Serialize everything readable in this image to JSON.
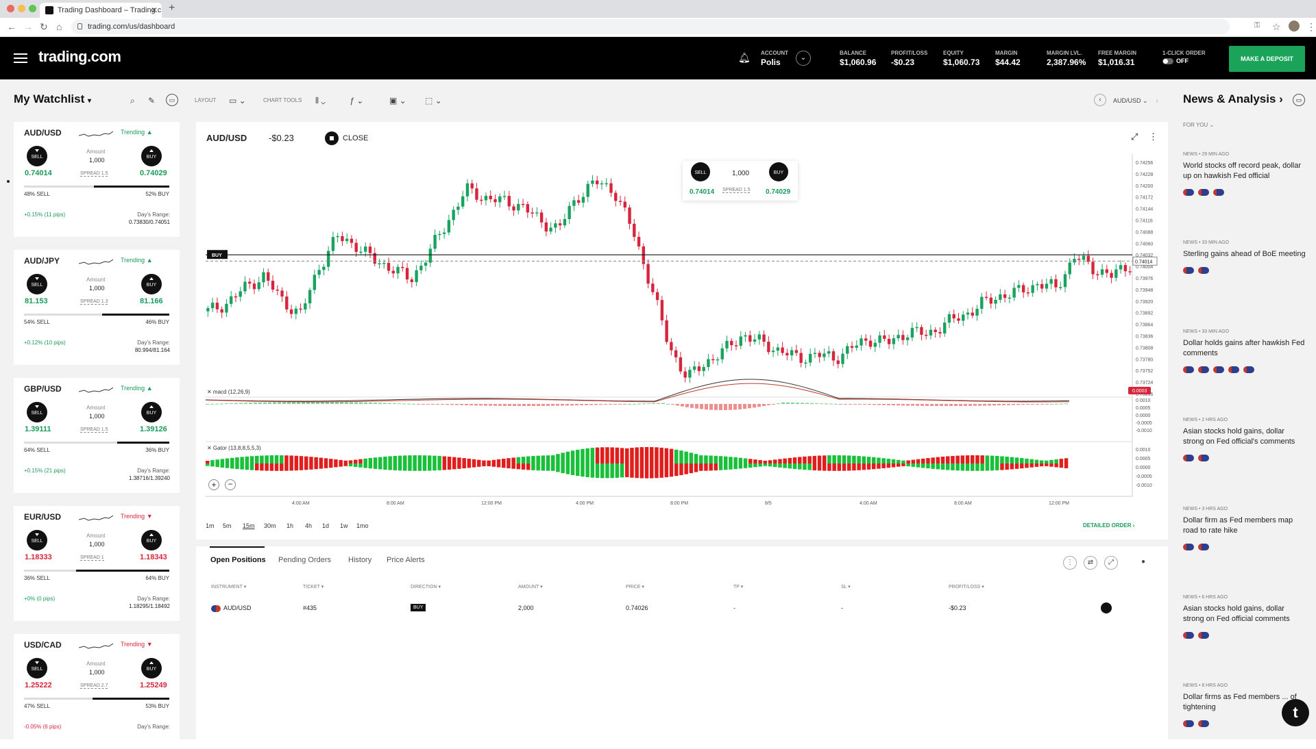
{
  "browser": {
    "tab_title": "Trading Dashboard – Trading.c",
    "url": "trading.com/us/dashboard"
  },
  "header": {
    "logo": "trading.com",
    "account_label": "ACCOUNT",
    "account_value": "Polis",
    "balance_label": "BALANCE",
    "balance_value": "$1,060.96",
    "pl_label": "PROFIT/LOSS",
    "pl_value": "-$0.23",
    "equity_label": "EQUITY",
    "equity_value": "$1,060.73",
    "margin_label": "MARGIN",
    "margin_value": "$44.42",
    "marginlvl_label": "MARGIN LVL.",
    "marginlvl_value": "2,387.96%",
    "freemargin_label": "FREE MARGIN",
    "freemargin_value": "$1,016.31",
    "oneclick_label": "1-CLICK ORDER",
    "oneclick_value": "OFF",
    "deposit_label": "MAKE A DEPOSIT"
  },
  "toolbar": {
    "watchlist_title": "My Watchlist",
    "layout_label": "LAYOUT",
    "charttools_label": "CHART TOOLS",
    "pair_selector": "AUD/USD"
  },
  "watchlist": [
    {
      "symbol": "AUD/USD",
      "trend": "Trending ▲",
      "trend_dir": "up",
      "sell": "0.74014",
      "buy": "0.74029",
      "amount_label": "Amount",
      "amount": "1,000",
      "spread": "SPREAD 1.5",
      "sell_pct": "48% SELL",
      "buy_pct": "52% BUY",
      "buy_frac": 0.52,
      "change": "+0.15% (11 pips)",
      "range_label": "Day's Range:",
      "range": "0.73830/0.74051"
    },
    {
      "symbol": "AUD/JPY",
      "trend": "Trending ▲",
      "trend_dir": "up",
      "sell": "81.153",
      "buy": "81.166",
      "amount_label": "Amount",
      "amount": "1,000",
      "spread": "SPREAD 1.3",
      "sell_pct": "54% SELL",
      "buy_pct": "46% BUY",
      "buy_frac": 0.46,
      "change": "+0.12% (10 pips)",
      "range_label": "Day's Range:",
      "range": "80.994/81.164"
    },
    {
      "symbol": "GBP/USD",
      "trend": "Trending ▲",
      "trend_dir": "up",
      "sell": "1.39111",
      "buy": "1.39126",
      "amount_label": "Amount",
      "amount": "1,000",
      "spread": "SPREAD 1.5",
      "sell_pct": "64% SELL",
      "buy_pct": "36% BUY",
      "buy_frac": 0.36,
      "change": "+0.15% (21 pips)",
      "range_label": "Day's Range:",
      "range": "1.38716/1.39240"
    },
    {
      "symbol": "EUR/USD",
      "trend": "Trending ▼",
      "trend_dir": "down",
      "sell": "1.18333",
      "buy": "1.18343",
      "amount_label": "Amount",
      "amount": "1,000",
      "spread": "SPREAD 1",
      "sell_pct": "36% SELL",
      "buy_pct": "64% BUY",
      "buy_frac": 0.64,
      "change": "+0% (0 pips)",
      "range_label": "Day's Range:",
      "range": "1.18295/1.18492"
    },
    {
      "symbol": "USD/CAD",
      "trend": "Trending ▼",
      "trend_dir": "down",
      "sell": "1.25222",
      "buy": "1.25249",
      "amount_label": "Amount",
      "amount": "1,000",
      "spread": "SPREAD 2.7",
      "sell_pct": "47% SELL",
      "buy_pct": "53% BUY",
      "buy_frac": 0.53,
      "change": "-0.05% (6 pips)",
      "range_label": "Day's Range:",
      "range": ""
    }
  ],
  "chart": {
    "symbol": "AUD/USD",
    "pl": "-$0.23",
    "close_label": "CLOSE",
    "ticket_sell": "SELL",
    "ticket_buy": "BUY",
    "ticket_amount": "1,000",
    "ticket_spread": "SPREAD 1.5",
    "ticket_sell_price": "0.74014",
    "ticket_buy_price": "0.74029",
    "buy_marker": "BUY",
    "price_tag": "0.74014",
    "macd_label": "macd (12,26,9)",
    "macd_tag": "0.0003",
    "gator_label": "Gator (13,8,8,5,5,3)",
    "timeframes": [
      "1m",
      "5m",
      "15m",
      "30m",
      "1h",
      "4h",
      "1d",
      "1w",
      "1mo"
    ],
    "detailed_order": "DETAILED ORDER ›"
  },
  "chart_data": {
    "type": "candlestick",
    "price_ticks": [
      "0.74256",
      "0.74228",
      "0.74200",
      "0.74172",
      "0.74144",
      "0.74116",
      "0.74088",
      "0.74060",
      "0.74032",
      "0.74004",
      "0.73976",
      "0.73948",
      "0.73920",
      "0.73892",
      "0.73864",
      "0.73836",
      "0.73808",
      "0.73780",
      "0.73752",
      "0.73724",
      "0.73696"
    ],
    "macd_ticks": [
      "0.0010",
      "0.0005",
      "0.0000",
      "-0.0005",
      "-0.0010"
    ],
    "gator_ticks": [
      "0.0010",
      "0.0005",
      "0.0000",
      "-0.0005",
      "-0.0010"
    ],
    "x_ticks": [
      "4:00 AM",
      "8:00 AM",
      "12:00 PM",
      "4:00 PM",
      "8:00 PM",
      "8/5",
      "4:00 AM",
      "8:00 AM",
      "12:00 PM"
    ],
    "ylim": [
      0.7368,
      0.7427
    ],
    "close_path": [
      0.7389,
      0.7391,
      0.7395,
      0.7398,
      0.7392,
      0.7388,
      0.74,
      0.7408,
      0.7406,
      0.7402,
      0.74,
      0.7397,
      0.7404,
      0.7412,
      0.742,
      0.7418,
      0.7417,
      0.7416,
      0.7412,
      0.741,
      0.7418,
      0.7422,
      0.742,
      0.741,
      0.7396,
      0.738,
      0.7372,
      0.7376,
      0.7379,
      0.7383,
      0.7381,
      0.7379,
      0.7377,
      0.7378,
      0.7377,
      0.738,
      0.7382,
      0.7381,
      0.7384,
      0.7383,
      0.7386,
      0.7388,
      0.7391,
      0.7393,
      0.7394,
      0.7396,
      0.7395,
      0.7403,
      0.74,
      0.7398,
      0.7401
    ]
  },
  "positions": {
    "tabs": [
      "Open Positions",
      "Pending Orders",
      "History",
      "Price Alerts"
    ],
    "headers": [
      "INSTRUMENT ▾",
      "TICKET ▾",
      "DIRECTION ▾",
      "AMOUNT ▾",
      "PRICE ▾",
      "TP ▾",
      "SL ▾",
      "PROFIT/LOSS ▾"
    ],
    "row": {
      "instrument": "AUD/USD",
      "ticket": "#435",
      "direction": "BUY",
      "amount": "2,000",
      "price": "0.74026",
      "tp": "-",
      "sl": "-",
      "pl": "-$0.23"
    }
  },
  "news": {
    "title": "News & Analysis ›",
    "filter": "FOR YOU ⌄",
    "items": [
      {
        "meta": "NEWS • 29 MIN AGO",
        "title": "World stocks off record peak, dollar up on hawkish Fed official",
        "flags": 3
      },
      {
        "meta": "NEWS • 33 MIN AGO",
        "title": "Sterling gains ahead of BoE meeting",
        "flags": 2
      },
      {
        "meta": "NEWS • 33 MIN AGO",
        "title": "Dollar holds gains after hawkish Fed comments",
        "flags": 5
      },
      {
        "meta": "NEWS • 2 HRS AGO",
        "title": "Asian stocks hold gains, dollar strong on Fed official's comments",
        "flags": 2
      },
      {
        "meta": "NEWS • 3 HRS AGO",
        "title": "Dollar firm as Fed members map road to rate hike",
        "flags": 2
      },
      {
        "meta": "NEWS • 6 HRS AGO",
        "title": "Asian stocks hold gains, dollar strong on Fed official comments",
        "flags": 2
      },
      {
        "meta": "NEWS • 8 HRS AGO",
        "title": "Dollar firms as Fed members ... of tightening",
        "flags": 2
      }
    ]
  }
}
